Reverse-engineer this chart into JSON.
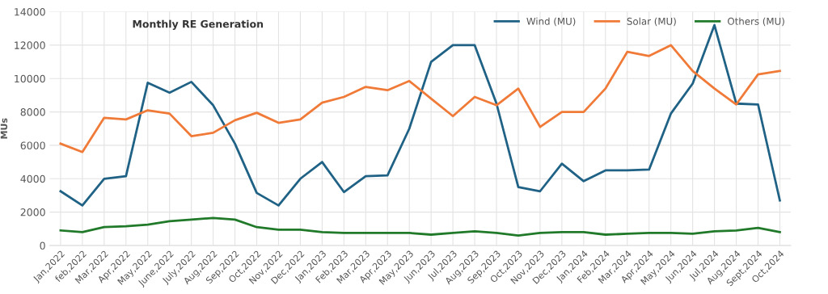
{
  "chart_data": {
    "type": "line",
    "title": "Monthly RE Generation",
    "ylabel": "MUs",
    "categories": [
      "Jan,2022",
      "feb,2022",
      "Mar,2022",
      "Apr,2022",
      "May,2022",
      "June,2022",
      "July,2022",
      "Aug,2022",
      "Sep,2022",
      "Oct,2022",
      "Nov,2022",
      "Dec,2022",
      "Jan,2023",
      "Feb,2023",
      "Mar,2023",
      "Apr,2023",
      "May,2023",
      "Jun,2023",
      "Jul,2023",
      "Aug,2023",
      "Sep,2023",
      "Oct,2023",
      "Nov,2023",
      "Dec,2023",
      "Jan,2024",
      "Feb,2024",
      "Mar,2024",
      "Apr,2024",
      "May,2024",
      "Jun,2024",
      "Jul,2024",
      "Aug,2024",
      "Sept,2024",
      "Oct,2024"
    ],
    "series": [
      {
        "name": "Wind (MU)",
        "color": "#1f6285",
        "values": [
          3250,
          2400,
          4000,
          4150,
          9750,
          9150,
          9800,
          8400,
          6100,
          3150,
          2400,
          4000,
          5000,
          3200,
          4150,
          4200,
          7000,
          11000,
          12000,
          12000,
          8500,
          3500,
          3250,
          4900,
          3850,
          4500,
          4500,
          4550,
          7900,
          9700,
          13200,
          8500,
          8450,
          2700
        ]
      },
      {
        "name": "Solar (MU)",
        "color": "#f07a38",
        "values": [
          6100,
          5600,
          7650,
          7550,
          8100,
          7900,
          6550,
          6750,
          7500,
          7950,
          7350,
          7550,
          8550,
          8900,
          9500,
          9300,
          9850,
          8800,
          7750,
          8900,
          8400,
          9400,
          7100,
          8000,
          8000,
          9400,
          11600,
          11350,
          12000,
          10450,
          9400,
          8450,
          10250,
          10450
        ]
      },
      {
        "name": "Others (MU)",
        "color": "#217a2a",
        "values": [
          900,
          800,
          1100,
          1150,
          1250,
          1450,
          1550,
          1650,
          1550,
          1100,
          950,
          950,
          800,
          750,
          750,
          750,
          750,
          650,
          750,
          850,
          750,
          600,
          750,
          800,
          800,
          650,
          700,
          750,
          750,
          700,
          850,
          900,
          1050,
          800
        ]
      }
    ],
    "ylim": [
      0,
      14000
    ],
    "yticks": [
      0,
      2000,
      4000,
      6000,
      8000,
      10000,
      12000,
      14000
    ],
    "grid": true,
    "legend": "top right",
    "marker": "none",
    "line_style": "solid"
  }
}
